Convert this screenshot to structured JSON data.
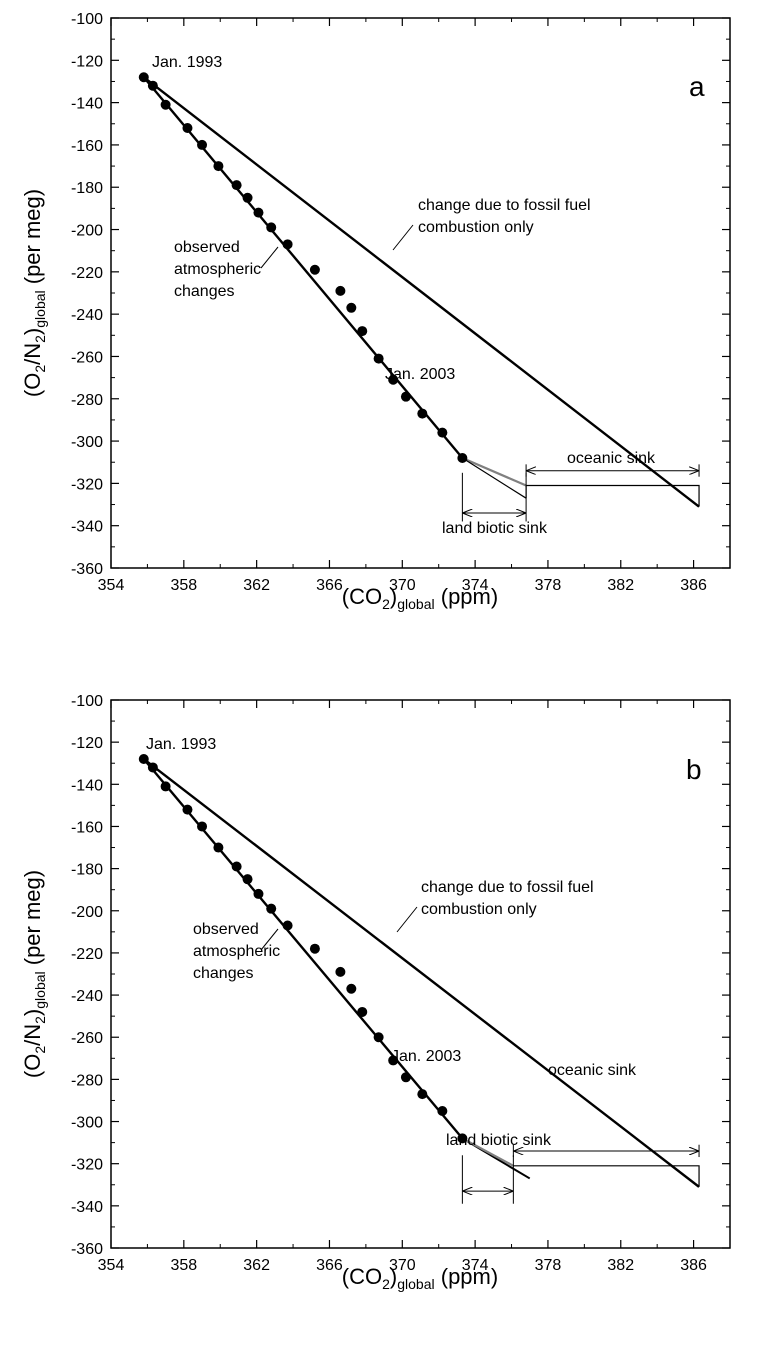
{
  "chart_data": [
    {
      "panel": "a",
      "type": "scatter",
      "xlabel": {
        "main": "(CO",
        "sub": "2",
        "after_sub": ")",
        "sub2": "global",
        "tail": " (ppm)"
      },
      "ylabel": {
        "pre": "(O",
        "s1": "2",
        "mid": "/N",
        "s2": "2",
        "close": ")",
        "s3": "global",
        "tail": " (per meg)"
      },
      "xlim": [
        354,
        388
      ],
      "ylim": [
        -360,
        -100
      ],
      "xticks": [
        354,
        358,
        362,
        366,
        370,
        374,
        378,
        382,
        386
      ],
      "yticks": [
        -100,
        -120,
        -140,
        -160,
        -180,
        -200,
        -220,
        -240,
        -260,
        -280,
        -300,
        -320,
        -340,
        -360
      ],
      "points": [
        [
          355.8,
          -128
        ],
        [
          356.3,
          -132
        ],
        [
          357.0,
          -141
        ],
        [
          358.2,
          -152
        ],
        [
          359.0,
          -160
        ],
        [
          359.9,
          -170
        ],
        [
          360.9,
          -179
        ],
        [
          361.5,
          -185
        ],
        [
          362.1,
          -192
        ],
        [
          362.8,
          -199
        ],
        [
          363.7,
          -207
        ],
        [
          365.2,
          -219
        ],
        [
          366.6,
          -229
        ],
        [
          367.2,
          -237
        ],
        [
          367.8,
          -248
        ],
        [
          368.7,
          -261
        ],
        [
          369.5,
          -271
        ],
        [
          370.2,
          -279
        ],
        [
          371.1,
          -287
        ],
        [
          372.2,
          -296
        ],
        [
          373.3,
          -308
        ]
      ],
      "observed_line": [
        [
          355.8,
          -128
        ],
        [
          373.3,
          -308
        ]
      ],
      "fossil_line": [
        [
          355.8,
          -128
        ],
        [
          386.3,
          -331
        ]
      ],
      "land_segment": [
        [
          373.3,
          -308
        ],
        [
          376.8,
          -321
        ]
      ],
      "ocean_box": {
        "x0": 376.8,
        "x1": 386.3,
        "y0": -321,
        "y1": -331
      },
      "ocean_arrow": {
        "x0": 376.8,
        "x1": 386.3,
        "y": -314,
        "bar_top": -311
      },
      "land_arrow": {
        "x0": 373.3,
        "x1": 376.8,
        "y": -334,
        "bar_top": -315,
        "bar_bottom": -338
      },
      "annotations": {
        "start": "Jan. 1993",
        "end": "Jan. 2003",
        "fossil_1": "change due to fossil fuel",
        "fossil_2": "combustion only",
        "observed_1": "observed",
        "observed_2": "atmospheric",
        "observed_3": "changes",
        "ocean": "oceanic sink",
        "land": "land biotic sink",
        "letter": "a"
      },
      "colors": {
        "main": "#000000",
        "land_line": "#808080"
      }
    },
    {
      "panel": "b",
      "type": "scatter",
      "xlabel": {
        "main": "(CO",
        "sub": "2",
        "after_sub": ")",
        "sub2": "global",
        "tail": " (ppm)"
      },
      "ylabel": {
        "pre": "(O",
        "s1": "2",
        "mid": "/N",
        "s2": "2",
        "close": ")",
        "s3": "global",
        "tail": " (per meg)"
      },
      "xlim": [
        354,
        388
      ],
      "ylim": [
        -360,
        -100
      ],
      "xticks": [
        354,
        358,
        362,
        366,
        370,
        374,
        378,
        382,
        386
      ],
      "yticks": [
        -100,
        -120,
        -140,
        -160,
        -180,
        -200,
        -220,
        -240,
        -260,
        -280,
        -300,
        -320,
        -340,
        -360
      ],
      "points": [
        [
          355.8,
          -128
        ],
        [
          356.3,
          -132
        ],
        [
          357.0,
          -141
        ],
        [
          358.2,
          -152
        ],
        [
          359.0,
          -160
        ],
        [
          359.9,
          -170
        ],
        [
          360.9,
          -179
        ],
        [
          361.5,
          -185
        ],
        [
          362.1,
          -192
        ],
        [
          362.8,
          -199
        ],
        [
          363.7,
          -207
        ],
        [
          365.2,
          -218
        ],
        [
          366.6,
          -229
        ],
        [
          367.2,
          -237
        ],
        [
          367.8,
          -248
        ],
        [
          368.7,
          -260
        ],
        [
          369.5,
          -271
        ],
        [
          370.2,
          -279
        ],
        [
          371.1,
          -287
        ],
        [
          372.2,
          -295
        ],
        [
          373.3,
          -308
        ]
      ],
      "observed_line": [
        [
          355.8,
          -128
        ],
        [
          373.3,
          -308
        ]
      ],
      "fossil_line": [
        [
          355.8,
          -128
        ],
        [
          386.3,
          -331
        ]
      ],
      "land_segment": [
        [
          373.3,
          -308
        ],
        [
          376.1,
          -321
        ]
      ],
      "land_extension": [
        [
          373.3,
          -308
        ],
        [
          377.0,
          -327
        ]
      ],
      "ocean_box": {
        "x0": 376.1,
        "x1": 386.3,
        "y0": -321,
        "y1": -331
      },
      "ocean_arrow": {
        "x0": 376.1,
        "x1": 386.3,
        "y": -314,
        "bar_top": -311
      },
      "land_arrow": {
        "x0": 373.3,
        "x1": 376.1,
        "y": -333,
        "bar_top": -316,
        "bar_bottom": -339
      },
      "annotations": {
        "start": "Jan. 1993",
        "end": "Jan. 2003",
        "fossil_1": "change due to fossil fuel",
        "fossil_2": "combustion only",
        "observed_1": "observed",
        "observed_2": "atmospheric",
        "observed_3": "changes",
        "ocean": "oceanic sink",
        "land": "land biotic sink",
        "letter": "b"
      },
      "colors": {
        "main": "#000000",
        "land_line": "#808080"
      }
    }
  ]
}
